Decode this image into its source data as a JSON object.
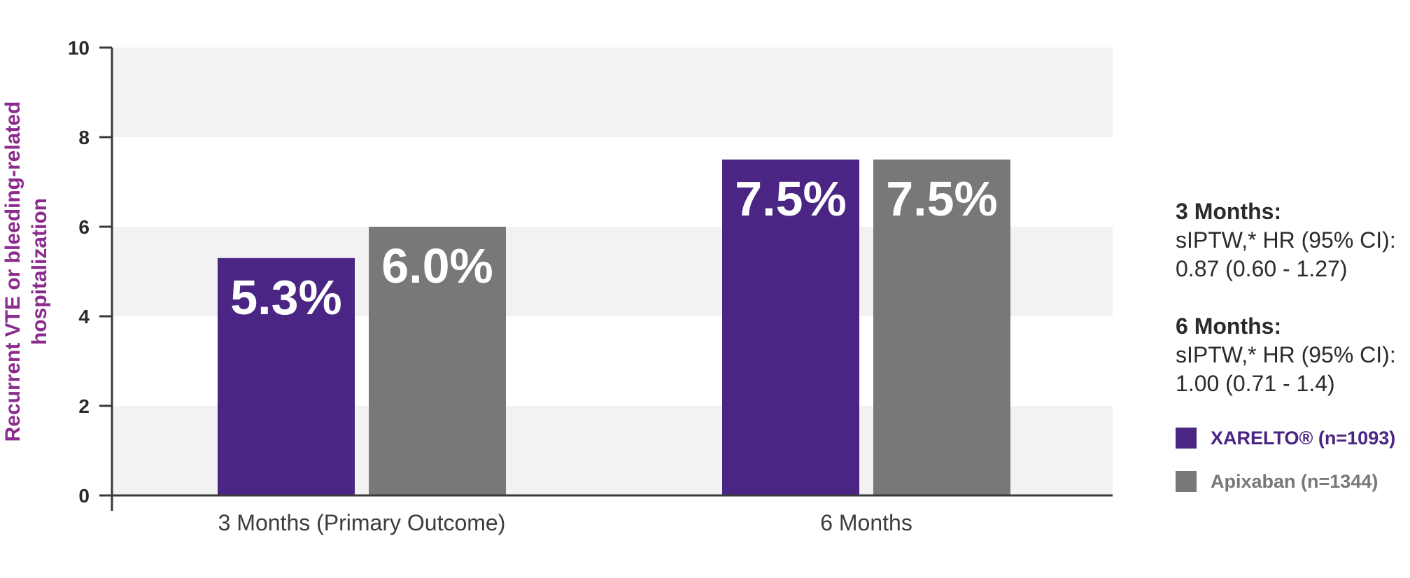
{
  "chart_data": {
    "type": "bar",
    "categories": [
      "3 Months (Primary Outcome)",
      "6 Months"
    ],
    "series": [
      {
        "name": "XARELTO® (n=1093)",
        "values": [
          5.3,
          7.5
        ],
        "labels": [
          "5.3%",
          "7.5%"
        ],
        "color": "#4a2584"
      },
      {
        "name": "Apixaban (n=1344)",
        "values": [
          6.0,
          7.5
        ],
        "labels": [
          "6.0%",
          "7.5%"
        ],
        "color": "#787878"
      }
    ],
    "ylabel": [
      "Recurrent VTE or bleeding-related",
      "hospitalization"
    ],
    "ylabel_color": "#8b2b8e",
    "ylim": [
      0,
      10
    ],
    "yticks": [
      "0",
      "2",
      "4",
      "6",
      "8",
      "10"
    ],
    "grid": "alternating horizontal bands",
    "band_color": "#f2f2f2",
    "legend_position": "right"
  },
  "notes": [
    {
      "heading": "3 Months:",
      "lines": [
        "sIPTW,* HR (95% CI):",
        "0.87 (0.60 - 1.27)"
      ]
    },
    {
      "heading": "6 Months:",
      "lines": [
        "sIPTW,* HR (95% CI):",
        "1.00 (0.71 - 1.4)"
      ]
    }
  ],
  "legend": [
    {
      "label": "XARELTO® (n=1093)",
      "color": "#4a2584"
    },
    {
      "label": "Apixaban (n=1344)",
      "color": "#787878"
    }
  ]
}
